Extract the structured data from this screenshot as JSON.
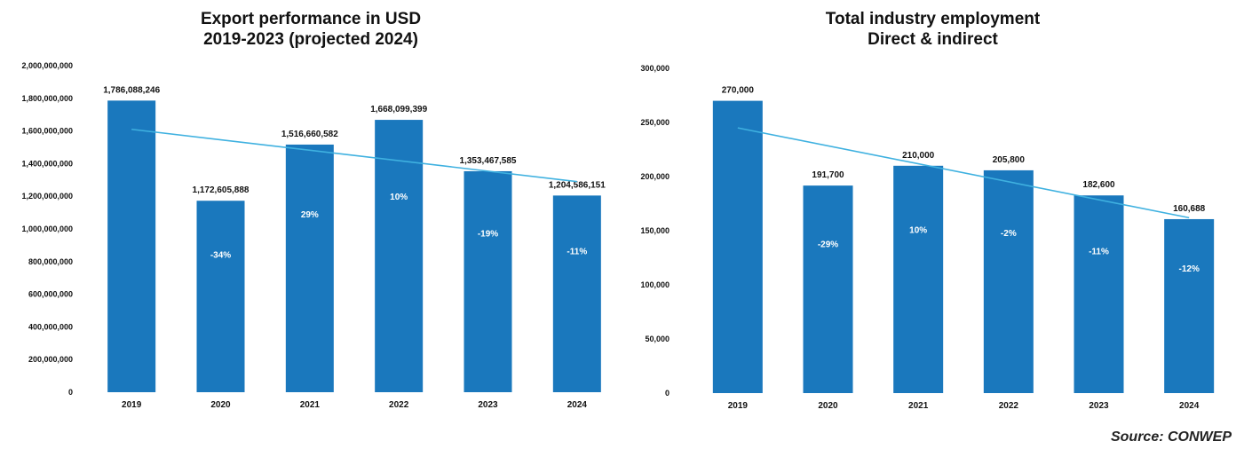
{
  "colors": {
    "bar": "#1a78bd",
    "trend": "#3fb1e0",
    "axis": "#444444"
  },
  "source_note": "Source: CONWEP",
  "chart_data": [
    {
      "type": "bar",
      "title_lines": [
        "Export performance in USD",
        "2019-2023 (projected 2024)"
      ],
      "categories": [
        "2019",
        "2020",
        "2021",
        "2022",
        "2023",
        "2024"
      ],
      "values": [
        1786088246,
        1172605888,
        1516660582,
        1668099399,
        1353467585,
        1204586151
      ],
      "value_labels": [
        "1,786,088,246",
        "1,172,605,888",
        "1,516,660,582",
        "1,668,099,399",
        "1,353,467,585",
        "1,204,586,151"
      ],
      "pct_labels": [
        "",
        "-34%",
        "29%",
        "10%",
        "-19%",
        "-11%"
      ],
      "ylim": [
        0,
        2000000000
      ],
      "y_ticks": [
        0,
        200000000,
        400000000,
        600000000,
        800000000,
        1000000000,
        1200000000,
        1400000000,
        1600000000,
        1800000000,
        2000000000
      ],
      "y_tick_labels": [
        "0",
        "200,000,000",
        "400,000,000",
        "600,000,000",
        "800,000,000",
        "1,000,000,000",
        "1,200,000,000",
        "1,400,000,000",
        "1,600,000,000",
        "1,800,000,000",
        "2,000,000,000"
      ],
      "trendline": {
        "type": "linear",
        "start": 1610000000,
        "end": 1290000000
      },
      "grid": false
    },
    {
      "type": "bar",
      "title_lines": [
        "Total industry employment",
        "Direct & indirect"
      ],
      "categories": [
        "2019",
        "2020",
        "2021",
        "2022",
        "2023",
        "2024"
      ],
      "values": [
        270000,
        191700,
        210000,
        205800,
        182600,
        160688
      ],
      "value_labels": [
        "270,000",
        "191,700",
        "210,000",
        "205,800",
        "182,600",
        "160,688"
      ],
      "pct_labels": [
        "",
        "-29%",
        "10%",
        "-2%",
        "-11%",
        "-12%"
      ],
      "ylim": [
        0,
        300000
      ],
      "y_ticks": [
        0,
        50000,
        100000,
        150000,
        200000,
        250000,
        300000
      ],
      "y_tick_labels": [
        "0",
        "50,000",
        "100,000",
        "150,000",
        "200,000",
        "250,000",
        "300,000"
      ],
      "trendline": {
        "type": "linear",
        "start": 245000,
        "end": 162000
      },
      "grid": false
    }
  ]
}
